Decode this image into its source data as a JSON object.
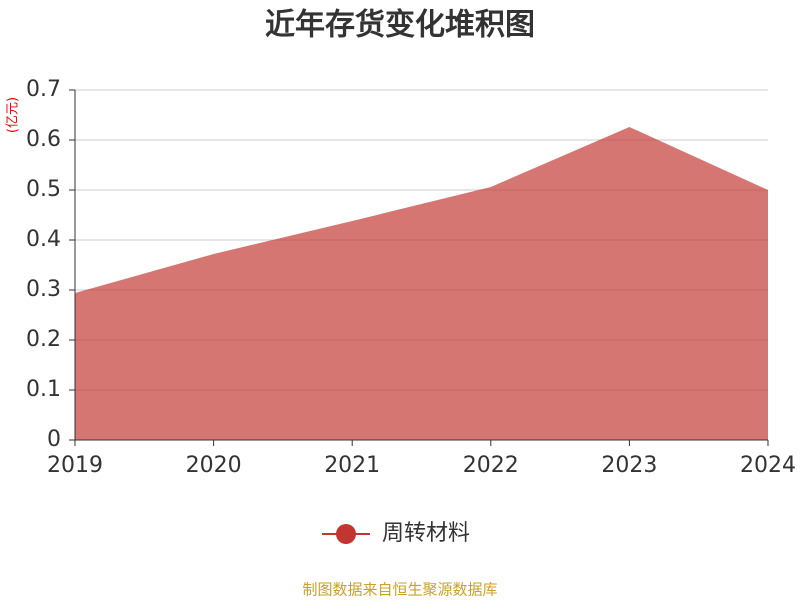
{
  "chart_data": {
    "type": "area",
    "title": "近年存货变化堆积图",
    "y_unit": "(亿元)",
    "categories": [
      "2019",
      "2020",
      "2021",
      "2022",
      "2023",
      "2024"
    ],
    "series": [
      {
        "name": "周转材料",
        "color": "#c23531",
        "values": [
          0.294,
          0.372,
          0.438,
          0.506,
          0.626,
          0.5
        ]
      }
    ],
    "ylim": [
      0,
      0.7
    ],
    "yticks": [
      0,
      0.1,
      0.2,
      0.3,
      0.4,
      0.5,
      0.6,
      0.7
    ],
    "grid": true,
    "legend": "bottom",
    "source": "制图数据来自恒生聚源数据库"
  }
}
